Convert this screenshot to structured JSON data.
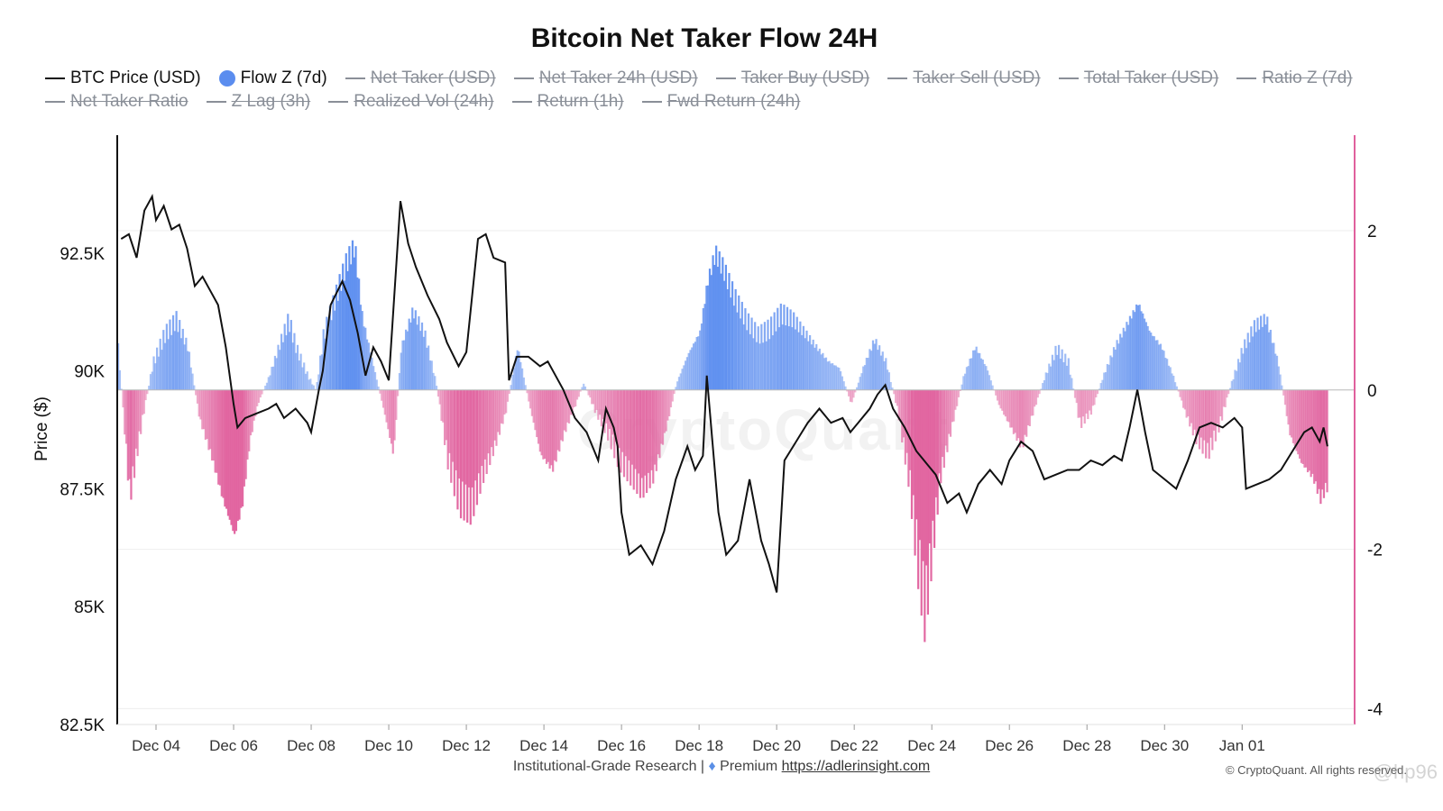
{
  "chart_data": {
    "type": "bar+line",
    "title": "Bitcoin Net Taker Flow 24H",
    "legend": [
      {
        "label": "BTC Price (USD)",
        "style": "line",
        "color": "#111111",
        "enabled": true
      },
      {
        "label": "Flow Z (7d)",
        "style": "dot",
        "color": "#5b8def",
        "enabled": true
      },
      {
        "label": "Net Taker (USD)",
        "style": "line",
        "enabled": false
      },
      {
        "label": "Net Taker 24h (USD)",
        "style": "line",
        "enabled": false
      },
      {
        "label": "Taker Buy (USD)",
        "style": "line",
        "enabled": false
      },
      {
        "label": "Taker Sell (USD)",
        "style": "line",
        "enabled": false
      },
      {
        "label": "Total Taker (USD)",
        "style": "line",
        "enabled": false
      },
      {
        "label": "Ratio Z (7d)",
        "style": "line",
        "enabled": false
      },
      {
        "label": "Net Taker Ratio",
        "style": "line",
        "enabled": false
      },
      {
        "label": "Z Lag (3h)",
        "style": "line",
        "enabled": false
      },
      {
        "label": "Realized Vol (24h)",
        "style": "line",
        "enabled": false
      },
      {
        "label": "Return (1h)",
        "style": "line",
        "enabled": false
      },
      {
        "label": "Fwd Return (24h)",
        "style": "line",
        "enabled": false
      }
    ],
    "y_left": {
      "label": "Price ($)",
      "min": 82500,
      "max": 95000,
      "ticks": [
        82500,
        85000,
        87500,
        90000,
        92500
      ],
      "tick_labels": [
        "82.5K",
        "85K",
        "87.5K",
        "90K",
        "92.5K"
      ]
    },
    "y_right": {
      "min": -4.2,
      "max": 3.2,
      "ticks": [
        -4,
        -2,
        0,
        2
      ],
      "tick_labels": [
        "-4",
        "-2",
        "0",
        "2"
      ]
    },
    "x": {
      "start_day": 3.0,
      "end_day": 34.9,
      "ticks": [
        4,
        6,
        8,
        10,
        12,
        14,
        16,
        18,
        20,
        22,
        24,
        26,
        28,
        30,
        32
      ],
      "tick_labels": [
        "Dec 04",
        "Dec 06",
        "Dec 08",
        "Dec 10",
        "Dec 12",
        "Dec 14",
        "Dec 16",
        "Dec 18",
        "Dec 20",
        "Dec 22",
        "Dec 24",
        "Dec 26",
        "Dec 28",
        "Dec 30",
        "Jan 01"
      ]
    },
    "series": [
      {
        "name": "BTC Price (USD)",
        "axis": "left",
        "color": "#111111",
        "points": [
          [
            3.1,
            92800
          ],
          [
            3.3,
            92900
          ],
          [
            3.5,
            92400
          ],
          [
            3.7,
            93400
          ],
          [
            3.9,
            93700
          ],
          [
            4.0,
            93200
          ],
          [
            4.2,
            93500
          ],
          [
            4.4,
            93000
          ],
          [
            4.6,
            93100
          ],
          [
            4.8,
            92600
          ],
          [
            5.0,
            91800
          ],
          [
            5.2,
            92000
          ],
          [
            5.4,
            91700
          ],
          [
            5.6,
            91400
          ],
          [
            5.8,
            90500
          ],
          [
            6.0,
            89300
          ],
          [
            6.1,
            88800
          ],
          [
            6.3,
            89000
          ],
          [
            6.6,
            89100
          ],
          [
            6.9,
            89200
          ],
          [
            7.1,
            89300
          ],
          [
            7.3,
            89000
          ],
          [
            7.6,
            89200
          ],
          [
            7.9,
            88900
          ],
          [
            8.0,
            88700
          ],
          [
            8.2,
            89600
          ],
          [
            8.3,
            90000
          ],
          [
            8.5,
            91400
          ],
          [
            8.8,
            91900
          ],
          [
            9.0,
            91500
          ],
          [
            9.2,
            90800
          ],
          [
            9.4,
            89900
          ],
          [
            9.6,
            90500
          ],
          [
            9.8,
            90200
          ],
          [
            10.0,
            89800
          ],
          [
            10.3,
            93600
          ],
          [
            10.5,
            92700
          ],
          [
            10.7,
            92200
          ],
          [
            11.0,
            91600
          ],
          [
            11.3,
            91100
          ],
          [
            11.5,
            90600
          ],
          [
            11.8,
            90100
          ],
          [
            12.0,
            90400
          ],
          [
            12.3,
            92800
          ],
          [
            12.5,
            92900
          ],
          [
            12.7,
            92400
          ],
          [
            13.0,
            92300
          ],
          [
            13.1,
            89800
          ],
          [
            13.3,
            90300
          ],
          [
            13.6,
            90300
          ],
          [
            13.9,
            90100
          ],
          [
            14.1,
            90200
          ],
          [
            14.3,
            89900
          ],
          [
            14.5,
            89600
          ],
          [
            14.8,
            89000
          ],
          [
            15.1,
            88700
          ],
          [
            15.4,
            88100
          ],
          [
            15.6,
            89200
          ],
          [
            15.8,
            88800
          ],
          [
            15.9,
            88400
          ],
          [
            16.0,
            87000
          ],
          [
            16.2,
            86100
          ],
          [
            16.5,
            86300
          ],
          [
            16.8,
            85900
          ],
          [
            17.1,
            86600
          ],
          [
            17.4,
            87700
          ],
          [
            17.7,
            88400
          ],
          [
            17.9,
            87900
          ],
          [
            18.1,
            88200
          ],
          [
            18.2,
            89900
          ],
          [
            18.5,
            87000
          ],
          [
            18.7,
            86100
          ],
          [
            19.0,
            86400
          ],
          [
            19.3,
            87700
          ],
          [
            19.6,
            86400
          ],
          [
            19.8,
            85900
          ],
          [
            20.0,
            85300
          ],
          [
            20.2,
            88100
          ],
          [
            20.5,
            88500
          ],
          [
            20.8,
            88900
          ],
          [
            21.1,
            89200
          ],
          [
            21.4,
            88900
          ],
          [
            21.7,
            89000
          ],
          [
            21.9,
            88700
          ],
          [
            22.1,
            88900
          ],
          [
            22.4,
            89200
          ],
          [
            22.6,
            89500
          ],
          [
            22.8,
            89700
          ],
          [
            23.0,
            89200
          ],
          [
            23.3,
            88800
          ],
          [
            23.6,
            88300
          ],
          [
            23.9,
            88000
          ],
          [
            24.1,
            87800
          ],
          [
            24.4,
            87200
          ],
          [
            24.7,
            87400
          ],
          [
            24.9,
            87000
          ],
          [
            25.2,
            87600
          ],
          [
            25.5,
            87900
          ],
          [
            25.8,
            87600
          ],
          [
            26.0,
            88100
          ],
          [
            26.3,
            88500
          ],
          [
            26.6,
            88300
          ],
          [
            26.9,
            87700
          ],
          [
            27.2,
            87800
          ],
          [
            27.5,
            87900
          ],
          [
            27.8,
            87900
          ],
          [
            28.1,
            88100
          ],
          [
            28.4,
            88000
          ],
          [
            28.7,
            88200
          ],
          [
            28.9,
            88100
          ],
          [
            29.1,
            88800
          ],
          [
            29.3,
            89600
          ],
          [
            29.5,
            88700
          ],
          [
            29.7,
            87900
          ],
          [
            30.0,
            87700
          ],
          [
            30.3,
            87500
          ],
          [
            30.6,
            88100
          ],
          [
            30.9,
            88800
          ],
          [
            31.2,
            88900
          ],
          [
            31.5,
            88800
          ],
          [
            31.8,
            89000
          ],
          [
            32.0,
            88800
          ],
          [
            32.1,
            87500
          ],
          [
            32.4,
            87600
          ],
          [
            32.7,
            87700
          ],
          [
            33.0,
            87900
          ],
          [
            33.3,
            88300
          ],
          [
            33.6,
            88700
          ],
          [
            33.8,
            88800
          ],
          [
            34.0,
            88500
          ],
          [
            34.1,
            88800
          ],
          [
            34.2,
            88400
          ]
        ]
      },
      {
        "name": "Flow Z (7d)",
        "axis": "right",
        "type": "bar",
        "color_pos": "#5b8def",
        "color_neg": "#e0609d",
        "points": [
          [
            3.0,
            0.6
          ],
          [
            3.3,
            -1.5
          ],
          [
            3.6,
            -0.5
          ],
          [
            3.9,
            0.4
          ],
          [
            4.2,
            0.8
          ],
          [
            4.5,
            1.0
          ],
          [
            4.8,
            0.6
          ],
          [
            5.1,
            -0.4
          ],
          [
            5.4,
            -0.9
          ],
          [
            5.7,
            -1.5
          ],
          [
            6.0,
            -2.0
          ],
          [
            6.2,
            -1.6
          ],
          [
            6.4,
            -0.7
          ],
          [
            6.6,
            -0.2
          ],
          [
            6.9,
            0.2
          ],
          [
            7.2,
            0.7
          ],
          [
            7.4,
            1.0
          ],
          [
            7.6,
            0.6
          ],
          [
            7.9,
            0.2
          ],
          [
            8.1,
            0.0
          ],
          [
            8.3,
            0.8
          ],
          [
            8.6,
            1.3
          ],
          [
            8.9,
            1.8
          ],
          [
            9.1,
            2.0
          ],
          [
            9.3,
            1.0
          ],
          [
            9.6,
            0.3
          ],
          [
            9.9,
            -0.4
          ],
          [
            10.1,
            -0.9
          ],
          [
            10.3,
            0.6
          ],
          [
            10.6,
            1.1
          ],
          [
            10.9,
            0.8
          ],
          [
            11.2,
            0.1
          ],
          [
            11.5,
            -1.0
          ],
          [
            11.8,
            -1.6
          ],
          [
            12.1,
            -1.7
          ],
          [
            12.4,
            -1.2
          ],
          [
            12.7,
            -0.8
          ],
          [
            13.0,
            -0.3
          ],
          [
            13.3,
            0.6
          ],
          [
            13.6,
            -0.2
          ],
          [
            13.9,
            -0.9
          ],
          [
            14.2,
            -1.1
          ],
          [
            14.5,
            -0.6
          ],
          [
            14.8,
            -0.2
          ],
          [
            15.0,
            0.1
          ],
          [
            15.3,
            -0.3
          ],
          [
            15.6,
            -0.6
          ],
          [
            15.9,
            -1.0
          ],
          [
            16.2,
            -1.2
          ],
          [
            16.5,
            -1.4
          ],
          [
            16.8,
            -1.2
          ],
          [
            17.1,
            -0.6
          ],
          [
            17.4,
            0.1
          ],
          [
            17.7,
            0.5
          ],
          [
            18.0,
            0.8
          ],
          [
            18.2,
            1.5
          ],
          [
            18.4,
            1.9
          ],
          [
            18.6,
            1.7
          ],
          [
            18.9,
            1.3
          ],
          [
            19.2,
            1.0
          ],
          [
            19.5,
            0.8
          ],
          [
            19.8,
            0.9
          ],
          [
            20.1,
            1.1
          ],
          [
            20.4,
            1.0
          ],
          [
            20.7,
            0.8
          ],
          [
            21.0,
            0.6
          ],
          [
            21.3,
            0.4
          ],
          [
            21.6,
            0.3
          ],
          [
            21.9,
            -0.2
          ],
          [
            22.2,
            0.3
          ],
          [
            22.5,
            0.7
          ],
          [
            22.8,
            0.4
          ],
          [
            23.1,
            -0.3
          ],
          [
            23.4,
            -1.3
          ],
          [
            23.6,
            -2.4
          ],
          [
            23.8,
            -3.2
          ],
          [
            24.0,
            -2.2
          ],
          [
            24.2,
            -1.2
          ],
          [
            24.5,
            -0.5
          ],
          [
            24.8,
            0.2
          ],
          [
            25.1,
            0.6
          ],
          [
            25.4,
            0.3
          ],
          [
            25.7,
            -0.2
          ],
          [
            26.0,
            -0.5
          ],
          [
            26.3,
            -0.8
          ],
          [
            26.6,
            -0.3
          ],
          [
            26.9,
            0.2
          ],
          [
            27.2,
            0.6
          ],
          [
            27.5,
            0.4
          ],
          [
            27.8,
            -0.5
          ],
          [
            28.1,
            -0.3
          ],
          [
            28.4,
            0.2
          ],
          [
            28.7,
            0.6
          ],
          [
            29.0,
            0.9
          ],
          [
            29.3,
            1.2
          ],
          [
            29.6,
            0.8
          ],
          [
            29.9,
            0.6
          ],
          [
            30.2,
            0.2
          ],
          [
            30.5,
            -0.3
          ],
          [
            30.8,
            -0.7
          ],
          [
            31.1,
            -0.9
          ],
          [
            31.4,
            -0.5
          ],
          [
            31.7,
            0.1
          ],
          [
            32.0,
            0.6
          ],
          [
            32.3,
            0.9
          ],
          [
            32.6,
            1.0
          ],
          [
            32.9,
            0.4
          ],
          [
            33.2,
            -0.6
          ],
          [
            33.5,
            -1.0
          ],
          [
            33.8,
            -1.2
          ],
          [
            34.0,
            -1.5
          ],
          [
            34.2,
            -1.3
          ]
        ]
      }
    ]
  },
  "footer": {
    "text": "Institutional-Grade Research |",
    "premium": "Premium",
    "link": "https://adlerinsight.com"
  },
  "copyright": "© CryptoQuant. All rights reserved.",
  "watermark": "CryptoQuant",
  "handle": "@hp96",
  "colors": {
    "axis_right": "#e0609d",
    "grid": "#eeeeee",
    "line": "#111111"
  }
}
